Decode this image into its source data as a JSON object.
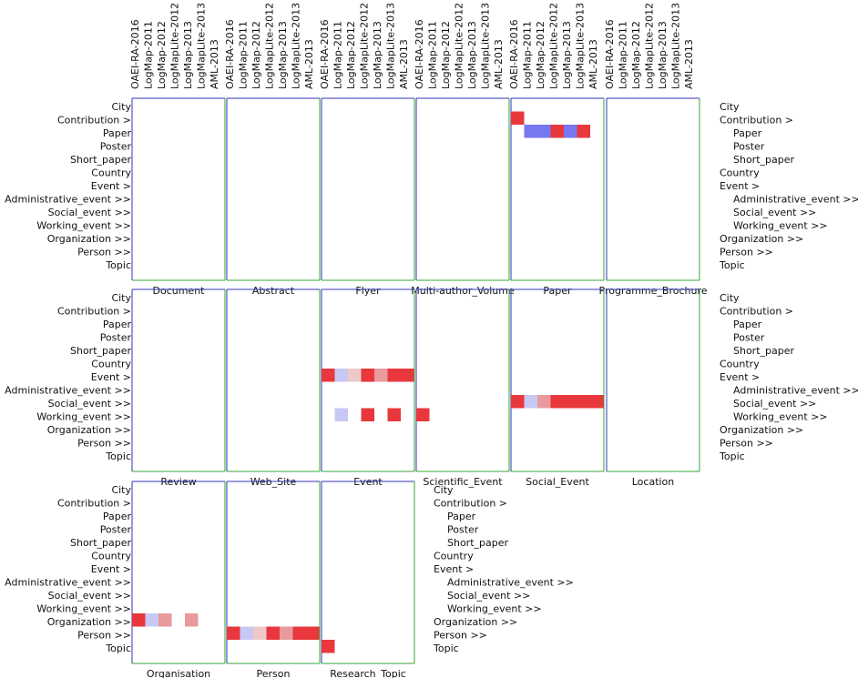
{
  "systems": [
    "OAEI-RA-2016",
    "LogMap-2011",
    "LogMap-2012",
    "LogMapLite-2012",
    "LogMap-2013",
    "LogMapLite-2013",
    "AML-2013"
  ],
  "row_labels": [
    "City",
    "Contribution >",
    "Paper",
    "Poster",
    "Short_paper",
    "Country",
    "Event >",
    "Administrative_event >>",
    "Social_event >>",
    "Working_event >>",
    "Organization >>",
    "Person >>",
    "Topic"
  ],
  "row_label_indent": [
    0,
    0,
    1,
    1,
    1,
    0,
    0,
    1,
    1,
    1,
    0,
    0,
    0
  ],
  "colors": {
    "frame_blue": "#3333bb",
    "frame_green": "#33aa33",
    "cell_red": "#e8383d",
    "cell_pink": "#e89a9c",
    "cell_pale_pink": "#efc8c8",
    "cell_blue": "#7777f0",
    "cell_pale_blue": "#c8c8f4"
  },
  "chart_data": {
    "type": "heatmap",
    "grid_rows": 3,
    "grid_cols": 6,
    "xlabel_set": [
      "OAEI-RA-2016",
      "LogMap-2011",
      "LogMap-2012",
      "LogMapLite-2012",
      "LogMap-2013",
      "LogMapLite-2013",
      "AML-2013"
    ],
    "ylabel_set": [
      "City",
      "Contribution",
      "Paper",
      "Poster",
      "Short_paper",
      "Country",
      "Event",
      "Administrative_event",
      "Social_event",
      "Working_event",
      "Organization",
      "Person",
      "Topic"
    ],
    "panels": [
      {
        "title": "Document",
        "cells": []
      },
      {
        "title": "Abstract",
        "cells": []
      },
      {
        "title": "Flyer",
        "cells": []
      },
      {
        "title": "Multi-author_Volume",
        "cells": []
      },
      {
        "title": "Paper",
        "cells": [
          {
            "row": 1,
            "col": 0,
            "color": "red"
          },
          {
            "row": 2,
            "col": 1,
            "color": "blue"
          },
          {
            "row": 2,
            "col": 2,
            "color": "blue"
          },
          {
            "row": 2,
            "col": 3,
            "color": "red"
          },
          {
            "row": 2,
            "col": 4,
            "color": "blue"
          },
          {
            "row": 2,
            "col": 5,
            "color": "red"
          }
        ]
      },
      {
        "title": "Programme_Brochure",
        "cells": []
      },
      {
        "title": "Review",
        "cells": []
      },
      {
        "title": "Web_Site",
        "cells": []
      },
      {
        "title": "Event",
        "cells": [
          {
            "row": 6,
            "col": 0,
            "color": "red"
          },
          {
            "row": 6,
            "col": 1,
            "color": "pale_blue"
          },
          {
            "row": 6,
            "col": 2,
            "color": "pale_pink"
          },
          {
            "row": 6,
            "col": 3,
            "color": "red"
          },
          {
            "row": 6,
            "col": 4,
            "color": "pink"
          },
          {
            "row": 6,
            "col": 5,
            "color": "red"
          },
          {
            "row": 6,
            "col": 6,
            "color": "red"
          },
          {
            "row": 9,
            "col": 1,
            "color": "pale_blue"
          },
          {
            "row": 9,
            "col": 3,
            "color": "red"
          },
          {
            "row": 9,
            "col": 5,
            "color": "red"
          }
        ]
      },
      {
        "title": "Scientific_Event",
        "cells": [
          {
            "row": 9,
            "col": 0,
            "color": "red"
          }
        ]
      },
      {
        "title": "Social_Event",
        "cells": [
          {
            "row": 8,
            "col": 0,
            "color": "red"
          },
          {
            "row": 8,
            "col": 1,
            "color": "pale_blue"
          },
          {
            "row": 8,
            "col": 2,
            "color": "pink"
          },
          {
            "row": 8,
            "col": 3,
            "color": "red"
          },
          {
            "row": 8,
            "col": 4,
            "color": "red"
          },
          {
            "row": 8,
            "col": 5,
            "color": "red"
          },
          {
            "row": 8,
            "col": 6,
            "color": "red"
          }
        ]
      },
      {
        "title": "Location",
        "cells": []
      },
      {
        "title": "Organisation",
        "cells": [
          {
            "row": 10,
            "col": 0,
            "color": "red"
          },
          {
            "row": 10,
            "col": 1,
            "color": "pale_blue"
          },
          {
            "row": 10,
            "col": 2,
            "color": "pink"
          },
          {
            "row": 10,
            "col": 4,
            "color": "pink"
          }
        ]
      },
      {
        "title": "Person",
        "cells": [
          {
            "row": 11,
            "col": 0,
            "color": "red"
          },
          {
            "row": 11,
            "col": 1,
            "color": "pale_blue"
          },
          {
            "row": 11,
            "col": 2,
            "color": "pale_pink"
          },
          {
            "row": 11,
            "col": 3,
            "color": "red"
          },
          {
            "row": 11,
            "col": 4,
            "color": "pink"
          },
          {
            "row": 11,
            "col": 5,
            "color": "red"
          },
          {
            "row": 11,
            "col": 6,
            "color": "red"
          }
        ]
      },
      {
        "title": "Research_Topic",
        "cells": [
          {
            "row": 12,
            "col": 0,
            "color": "red"
          }
        ]
      }
    ]
  }
}
